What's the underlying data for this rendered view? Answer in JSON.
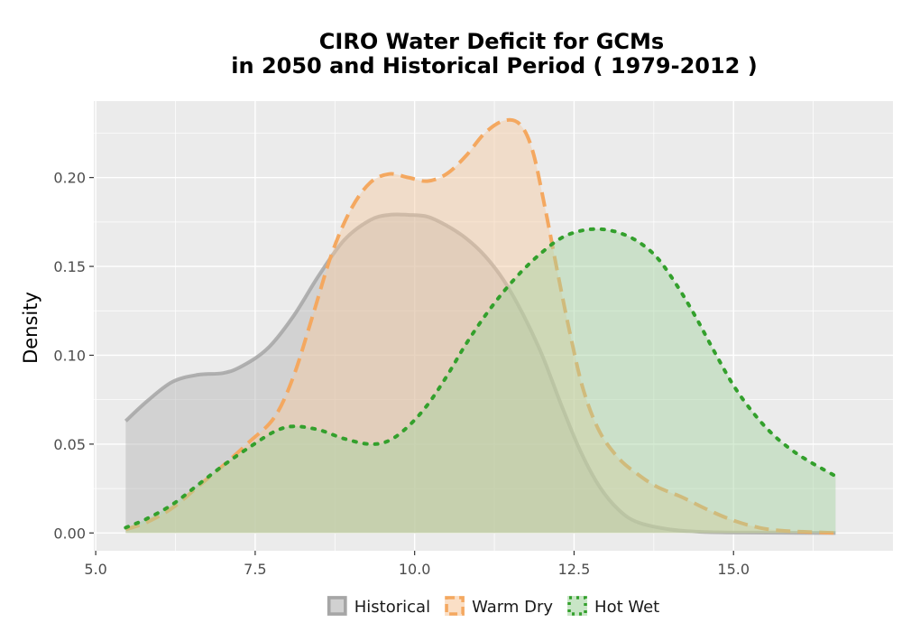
{
  "chart_data": {
    "type": "area",
    "title_lines": [
      "CIRO  Water Deficit for GCMs",
      "in 2050 and Historical Period ( 1979-2012 )"
    ],
    "xlabel": "",
    "ylabel": "Density",
    "xlim": [
      4.97,
      17.5
    ],
    "ylim": [
      -0.01,
      0.243
    ],
    "x_ticks": [
      5.0,
      7.5,
      10.0,
      12.5,
      15.0
    ],
    "x_tick_labels": [
      "5.0",
      "7.5",
      "10.0",
      "12.5",
      "15.0"
    ],
    "y_ticks": [
      0.0,
      0.05,
      0.1,
      0.15,
      0.2
    ],
    "y_tick_labels": [
      "0.00",
      "0.05",
      "0.10",
      "0.15",
      "0.20"
    ],
    "grid": true,
    "legend_position": "bottom",
    "series": [
      {
        "name": "Historical",
        "line_style": "solid",
        "line_color": "#a6a6a6",
        "fill_color": "#b3b3b3",
        "points": [
          [
            5.47,
            0.063
          ],
          [
            5.8,
            0.074
          ],
          [
            6.2,
            0.085
          ],
          [
            6.6,
            0.089
          ],
          [
            7.0,
            0.09
          ],
          [
            7.3,
            0.094
          ],
          [
            7.7,
            0.104
          ],
          [
            8.1,
            0.122
          ],
          [
            8.5,
            0.145
          ],
          [
            8.9,
            0.165
          ],
          [
            9.3,
            0.176
          ],
          [
            9.6,
            0.179
          ],
          [
            9.9,
            0.179
          ],
          [
            10.2,
            0.178
          ],
          [
            10.5,
            0.173
          ],
          [
            10.8,
            0.166
          ],
          [
            11.1,
            0.156
          ],
          [
            11.4,
            0.142
          ],
          [
            11.7,
            0.123
          ],
          [
            12.0,
            0.1
          ],
          [
            12.3,
            0.072
          ],
          [
            12.6,
            0.046
          ],
          [
            12.9,
            0.026
          ],
          [
            13.2,
            0.013
          ],
          [
            13.5,
            0.006
          ],
          [
            14.0,
            0.002
          ],
          [
            14.5,
            0.0006
          ],
          [
            15.2,
            0.0002
          ],
          [
            16.6,
            0.0
          ]
        ]
      },
      {
        "name": "Warm Dry",
        "line_style": "dashed",
        "line_color": "#f4a860",
        "fill_color": "#f7c9a0",
        "points": [
          [
            5.47,
            0.002
          ],
          [
            5.8,
            0.006
          ],
          [
            6.2,
            0.014
          ],
          [
            6.6,
            0.026
          ],
          [
            7.0,
            0.038
          ],
          [
            7.4,
            0.051
          ],
          [
            7.8,
            0.065
          ],
          [
            8.1,
            0.088
          ],
          [
            8.4,
            0.122
          ],
          [
            8.7,
            0.157
          ],
          [
            9.0,
            0.182
          ],
          [
            9.3,
            0.197
          ],
          [
            9.6,
            0.202
          ],
          [
            9.9,
            0.2
          ],
          [
            10.2,
            0.198
          ],
          [
            10.5,
            0.202
          ],
          [
            10.8,
            0.212
          ],
          [
            11.1,
            0.225
          ],
          [
            11.4,
            0.232
          ],
          [
            11.65,
            0.23
          ],
          [
            11.85,
            0.215
          ],
          [
            12.05,
            0.182
          ],
          [
            12.25,
            0.145
          ],
          [
            12.45,
            0.11
          ],
          [
            12.65,
            0.08
          ],
          [
            12.9,
            0.057
          ],
          [
            13.2,
            0.042
          ],
          [
            13.5,
            0.033
          ],
          [
            13.8,
            0.026
          ],
          [
            14.2,
            0.02
          ],
          [
            14.6,
            0.013
          ],
          [
            15.0,
            0.007
          ],
          [
            15.4,
            0.003
          ],
          [
            15.8,
            0.0012
          ],
          [
            16.6,
            0.0
          ]
        ]
      },
      {
        "name": "Hot Wet",
        "line_style": "dotted",
        "line_color": "#33a02c",
        "fill_color": "#a3d3a0",
        "points": [
          [
            5.47,
            0.003
          ],
          [
            5.8,
            0.008
          ],
          [
            6.2,
            0.016
          ],
          [
            6.6,
            0.027
          ],
          [
            7.0,
            0.038
          ],
          [
            7.4,
            0.048
          ],
          [
            7.8,
            0.057
          ],
          [
            8.1,
            0.06
          ],
          [
            8.5,
            0.058
          ],
          [
            8.9,
            0.053
          ],
          [
            9.3,
            0.05
          ],
          [
            9.6,
            0.052
          ],
          [
            9.9,
            0.06
          ],
          [
            10.2,
            0.072
          ],
          [
            10.5,
            0.088
          ],
          [
            10.8,
            0.106
          ],
          [
            11.1,
            0.122
          ],
          [
            11.4,
            0.136
          ],
          [
            11.7,
            0.148
          ],
          [
            12.0,
            0.158
          ],
          [
            12.3,
            0.166
          ],
          [
            12.6,
            0.17
          ],
          [
            12.9,
            0.171
          ],
          [
            13.2,
            0.169
          ],
          [
            13.5,
            0.164
          ],
          [
            13.8,
            0.155
          ],
          [
            14.1,
            0.14
          ],
          [
            14.4,
            0.122
          ],
          [
            14.7,
            0.102
          ],
          [
            15.0,
            0.083
          ],
          [
            15.3,
            0.068
          ],
          [
            15.6,
            0.056
          ],
          [
            15.9,
            0.047
          ],
          [
            16.2,
            0.04
          ],
          [
            16.6,
            0.032
          ]
        ]
      }
    ]
  }
}
